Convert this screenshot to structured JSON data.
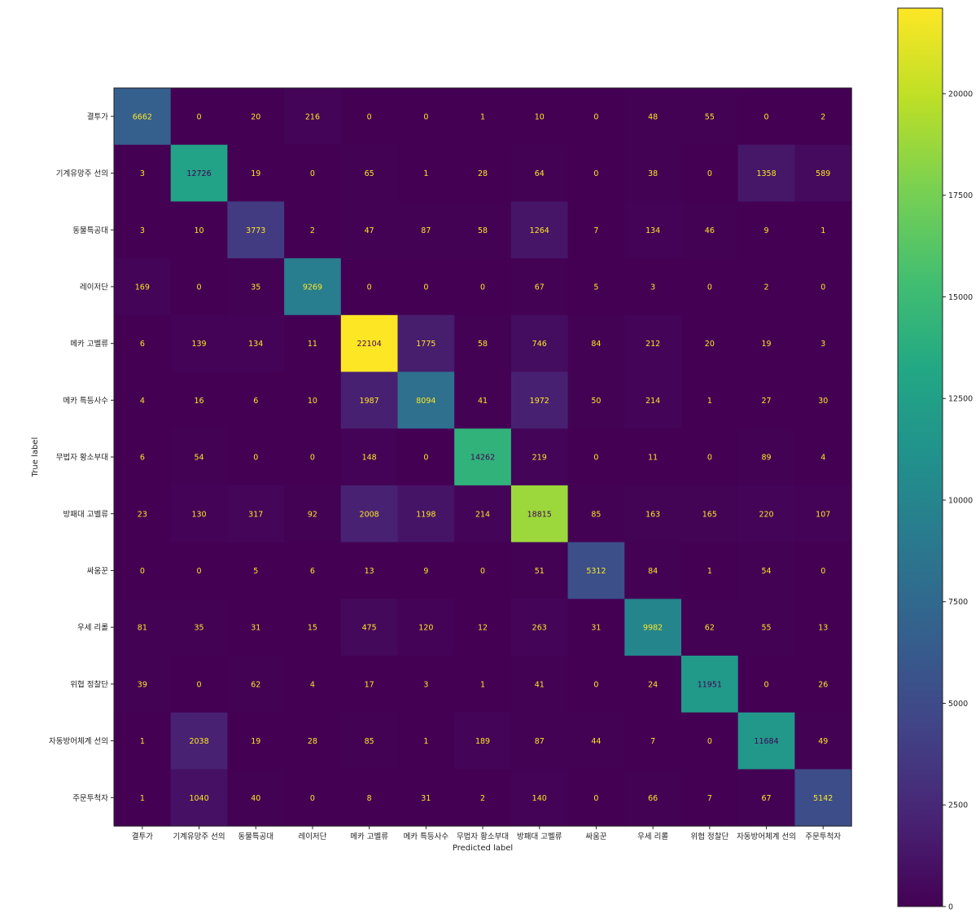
{
  "chart_data": {
    "type": "heatmap",
    "xlabel": "Predicted label",
    "ylabel": "True label",
    "categories": [
      "결투가",
      "기계유망주 선의",
      "동물특공대",
      "레이저단",
      "메카 고벨류",
      "메카 특등사수",
      "무법자 황소부대",
      "방패대 고벨류",
      "싸움꾼",
      "우세 리롤",
      "위협 정찰단",
      "자동방어체계 선의",
      "주문투척자"
    ],
    "matrix": [
      [
        6662,
        0,
        20,
        216,
        0,
        0,
        1,
        10,
        0,
        48,
        55,
        0,
        2
      ],
      [
        3,
        12726,
        19,
        0,
        65,
        1,
        28,
        64,
        0,
        38,
        0,
        1358,
        589
      ],
      [
        3,
        10,
        3773,
        2,
        47,
        87,
        58,
        1264,
        7,
        134,
        46,
        9,
        1
      ],
      [
        169,
        0,
        35,
        9269,
        0,
        0,
        0,
        67,
        5,
        3,
        0,
        2,
        0
      ],
      [
        6,
        139,
        134,
        11,
        22104,
        1775,
        58,
        746,
        84,
        212,
        20,
        19,
        3
      ],
      [
        4,
        16,
        6,
        10,
        1987,
        8094,
        41,
        1972,
        50,
        214,
        1,
        27,
        30
      ],
      [
        6,
        54,
        0,
        0,
        148,
        0,
        14262,
        219,
        0,
        11,
        0,
        89,
        4
      ],
      [
        23,
        130,
        317,
        92,
        2008,
        1198,
        214,
        18815,
        85,
        163,
        165,
        220,
        107
      ],
      [
        0,
        0,
        5,
        6,
        13,
        9,
        0,
        51,
        5312,
        84,
        1,
        54,
        0
      ],
      [
        81,
        35,
        31,
        15,
        475,
        120,
        12,
        263,
        31,
        9982,
        62,
        55,
        13
      ],
      [
        39,
        0,
        62,
        4,
        17,
        3,
        1,
        41,
        0,
        24,
        11951,
        0,
        26
      ],
      [
        1,
        2038,
        19,
        28,
        85,
        1,
        189,
        87,
        44,
        7,
        0,
        11684,
        49
      ],
      [
        1,
        1040,
        40,
        0,
        8,
        31,
        2,
        140,
        0,
        66,
        7,
        67,
        5142
      ]
    ],
    "colormap": "viridis",
    "color_range": [
      0,
      22104
    ],
    "colorbar_ticks": [
      0,
      2500,
      5000,
      7500,
      10000,
      12500,
      15000,
      17500,
      20000
    ],
    "text_color_light": "#fde725",
    "text_color_dark": "#440154"
  }
}
